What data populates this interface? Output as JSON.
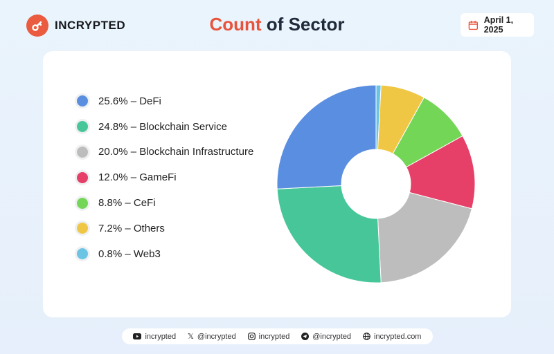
{
  "brand": {
    "name": "INCRYPTED",
    "color": "#ea5b3f"
  },
  "header": {
    "title_accent": "Count",
    "title_rest": " of Sector",
    "date": "April 1, 2025"
  },
  "chart_data": {
    "type": "pie",
    "variant": "donut",
    "title": "Count of Sector",
    "legend": "left",
    "categories": [
      "DeFi",
      "Blockchain Service",
      "Blockchain Infrastructure",
      "GameFi",
      "CeFi",
      "Others",
      "Web3"
    ],
    "values": [
      25.6,
      24.8,
      20.0,
      12.0,
      8.8,
      7.2,
      0.8
    ],
    "labels": [
      "25.6% – DeFi",
      "24.8% – Blockchain Service",
      "20.0% – Blockchain Infrastructure",
      "12.0% – GameFi",
      "8.8% – CeFi",
      "7.2% – Others",
      "0.8% – Web3"
    ],
    "colors": [
      "#5a8ee0",
      "#47c799",
      "#bdbdbd",
      "#e63f68",
      "#74d656",
      "#f0c745",
      "#6cc4e5"
    ]
  },
  "footer": [
    {
      "icon": "youtube-icon",
      "text": "incrypted"
    },
    {
      "icon": "x-icon",
      "text": "@incrypted"
    },
    {
      "icon": "instagram-icon",
      "text": "incrypted"
    },
    {
      "icon": "telegram-icon",
      "text": "@incrypted"
    },
    {
      "icon": "globe-icon",
      "text": "incrypted.com"
    }
  ]
}
